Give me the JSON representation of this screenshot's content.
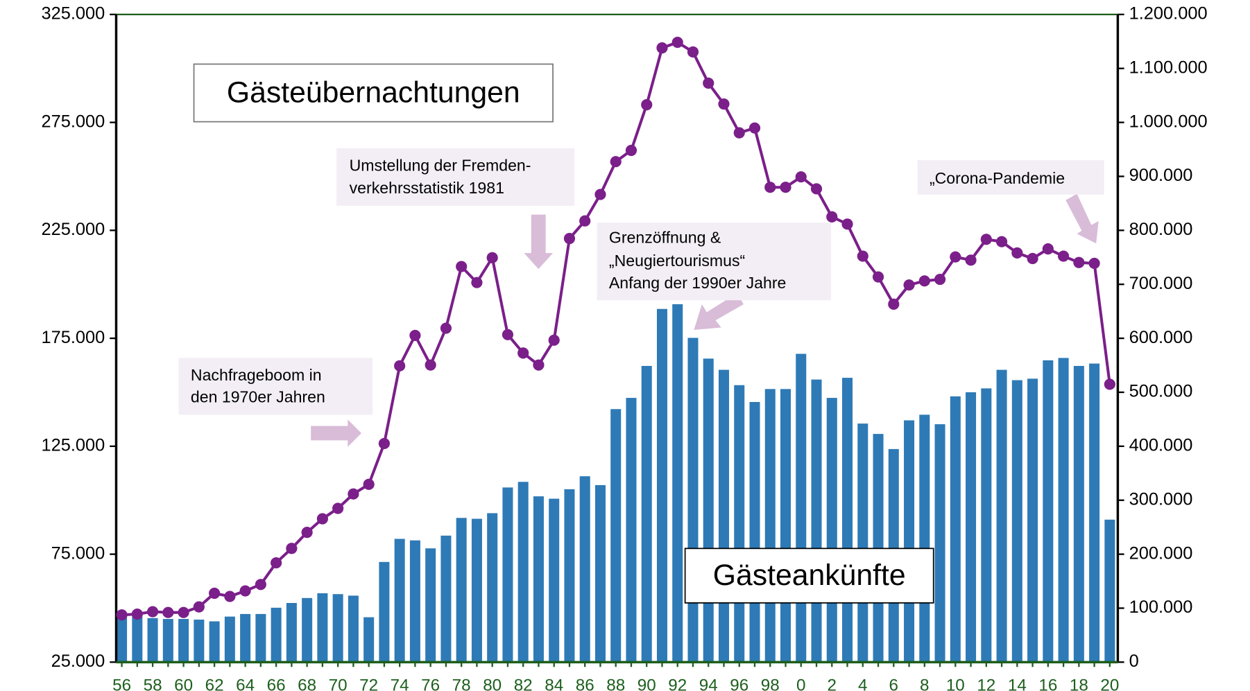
{
  "chart_data": {
    "type": "bar_line",
    "categories": [
      "56",
      null,
      "58",
      null,
      "60",
      null,
      "62",
      null,
      "64",
      null,
      "66",
      null,
      "68",
      null,
      "70",
      null,
      "72",
      null,
      "74",
      null,
      "76",
      null,
      "78",
      null,
      "80",
      null,
      "82",
      null,
      "84",
      null,
      "86",
      null,
      "88",
      null,
      "90",
      null,
      "92",
      null,
      "94",
      null,
      "96",
      null,
      "98",
      null,
      "0",
      null,
      "2",
      null,
      "4",
      null,
      "6",
      null,
      "8",
      null,
      "10",
      null,
      "12",
      null,
      "14",
      null,
      "16",
      null,
      "18",
      null,
      "20"
    ],
    "series": [
      {
        "name": "Gästeankünfte",
        "type": "bar",
        "axis": "y",
        "color": "#2e7ab6",
        "values": [
          46100,
          46100,
          45400,
          45000,
          45000,
          44700,
          43900,
          46100,
          47300,
          47300,
          50200,
          52400,
          54700,
          56900,
          56500,
          55800,
          45800,
          71400,
          82100,
          81400,
          77700,
          83600,
          91800,
          91400,
          94000,
          105900,
          108500,
          101800,
          100700,
          105100,
          111100,
          107000,
          142200,
          147400,
          162200,
          188600,
          190800,
          175200,
          165600,
          160400,
          153300,
          145500,
          151500,
          151500,
          167800,
          155900,
          147400,
          156700,
          135500,
          130700,
          123700,
          137000,
          139600,
          135200,
          148100,
          150000,
          151800,
          160400,
          155600,
          156300,
          164800,
          165900,
          162200,
          163300,
          91000
        ]
      },
      {
        "name": "Gästeübernachtungen",
        "type": "line",
        "axis": "y2",
        "color": "#7b1f8a",
        "values": [
          87500,
          89000,
          93500,
          92000,
          92000,
          102400,
          127600,
          121700,
          132000,
          143900,
          184000,
          210700,
          240400,
          265600,
          284900,
          311600,
          329400,
          405000,
          549000,
          605300,
          550500,
          618700,
          733000,
          703300,
          749300,
          606800,
          572700,
          550500,
          596500,
          784900,
          817500,
          866500,
          927300,
          948100,
          1032700,
          1138000,
          1148400,
          1130600,
          1072700,
          1034100,
          980700,
          989600,
          879800,
          879800,
          899100,
          876900,
          825000,
          811600,
          752200,
          713700,
          663200,
          698800,
          706300,
          709200,
          750800,
          744800,
          783400,
          779000,
          758200,
          747800,
          765600,
          752200,
          740400,
          738900,
          514800
        ]
      }
    ],
    "ylim": [
      25000,
      325000
    ],
    "yticks": [
      {
        "value": 25000,
        "label": "25.000"
      },
      {
        "value": 75000,
        "label": "75.000"
      },
      {
        "value": 125000,
        "label": "125.000"
      },
      {
        "value": 175000,
        "label": "175.000"
      },
      {
        "value": 225000,
        "label": "225.000"
      },
      {
        "value": 275000,
        "label": "275.000"
      },
      {
        "value": 325000,
        "label": "325.000"
      }
    ],
    "y2lim": [
      0,
      1200000
    ],
    "y2ticks": [
      0,
      {
        "value": 100000,
        "label": "100.000"
      },
      {
        "value": 200000,
        "label": "200.000"
      },
      {
        "value": 300000,
        "label": "300.000"
      },
      {
        "value": 400000,
        "label": "400.000"
      },
      {
        "value": 500000,
        "label": "500.000"
      },
      {
        "value": 600000,
        "label": "600.000"
      },
      {
        "value": 700000,
        "label": "700.000"
      },
      {
        "value": 800000,
        "label": "800.000"
      },
      {
        "value": 900000,
        "label": "900.000"
      },
      {
        "value": 1000000,
        "label": "1.000.000"
      },
      {
        "value": 1100000,
        "label": "1.100.000"
      },
      {
        "value": 1200000,
        "label": "1.200.000"
      }
    ],
    "annotations": [
      {
        "lines": [
          "Nachfrageboom in",
          "den 1970er Jahren"
        ]
      },
      {
        "lines": [
          "Umstellung der Fremden-",
          "verkehrsstatistik 1981"
        ]
      },
      {
        "lines": [
          "Grenzöffnung &",
          "„Neugiertourismus“",
          "Anfang der 1990er Jahre"
        ]
      },
      {
        "lines": [
          "„Corona-Pandemie"
        ]
      }
    ]
  }
}
